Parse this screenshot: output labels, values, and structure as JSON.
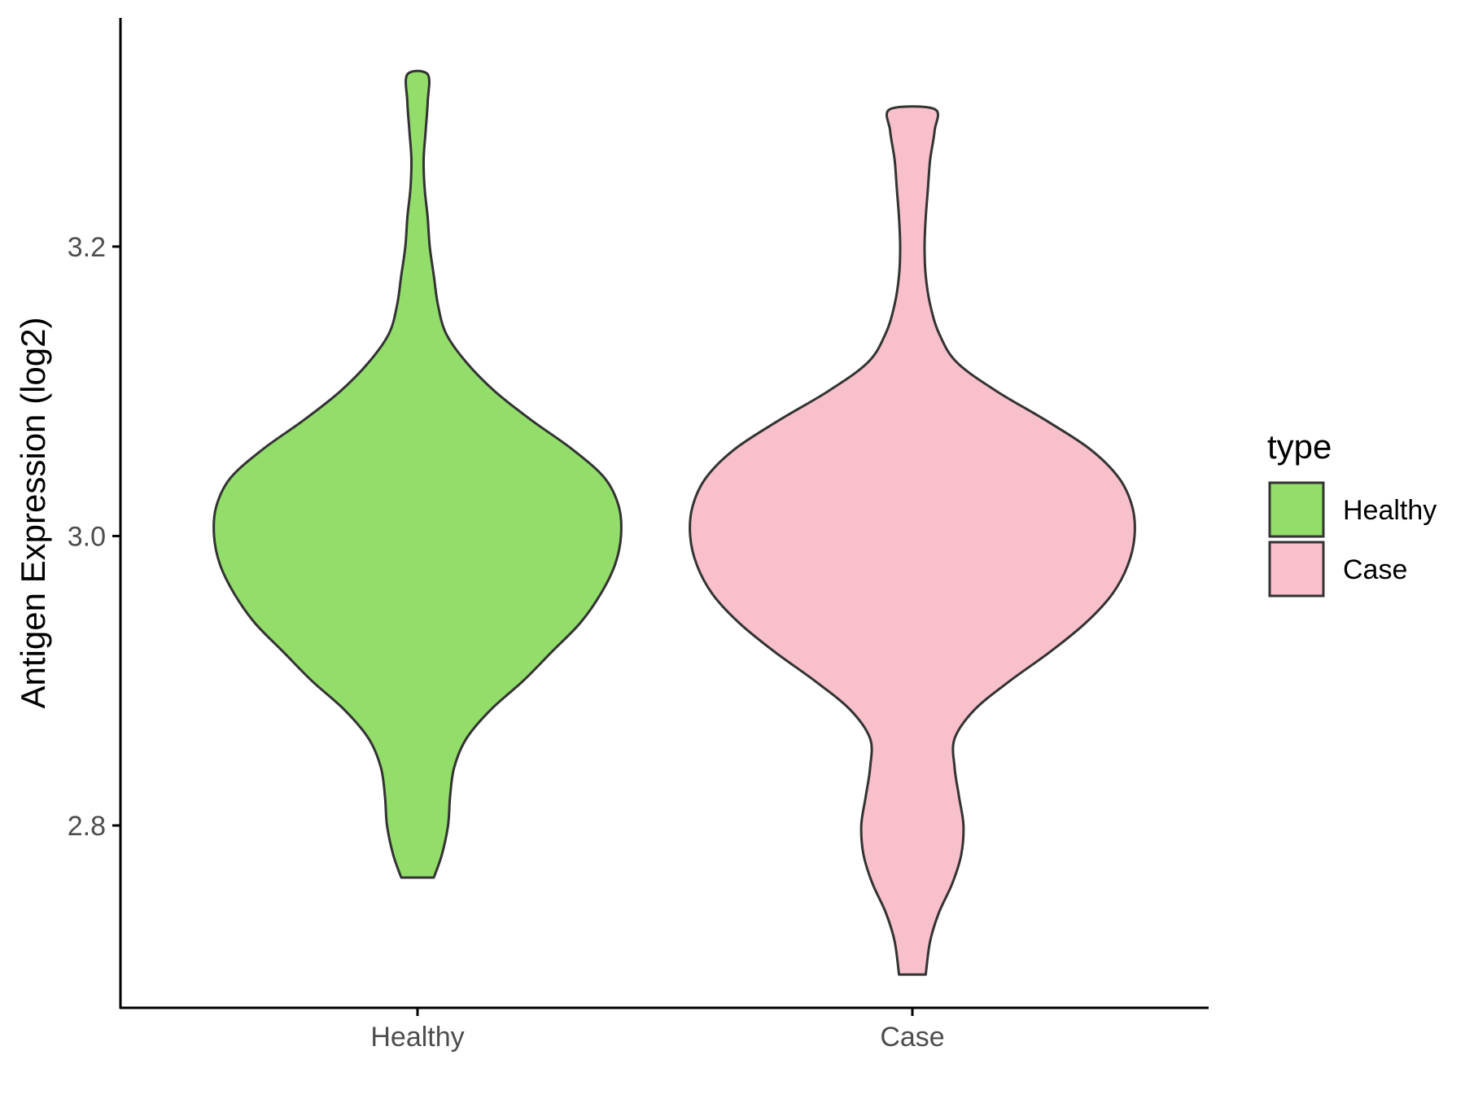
{
  "chart_data": {
    "type": "violin",
    "title": "",
    "xlabel": "",
    "ylabel": "Antigen Expression (log2)",
    "categories": [
      "Healthy",
      "Case"
    ],
    "ylim": [
      2.674,
      3.358
    ],
    "yticks": [
      2.8,
      3.0,
      3.2
    ],
    "ytick_labels": [
      "2.8",
      "3.0",
      "3.2"
    ],
    "grid": false,
    "legend": {
      "title": "type",
      "position": "right",
      "entries": [
        "Healthy",
        "Case"
      ]
    },
    "series": [
      {
        "name": "Healthy",
        "color": "#93DD6A",
        "min": 2.764,
        "max": 3.319,
        "density_profile": [
          [
            2.764,
            0.08
          ],
          [
            2.78,
            0.12
          ],
          [
            2.8,
            0.15
          ],
          [
            2.82,
            0.16
          ],
          [
            2.84,
            0.18
          ],
          [
            2.86,
            0.24
          ],
          [
            2.88,
            0.36
          ],
          [
            2.9,
            0.52
          ],
          [
            2.92,
            0.66
          ],
          [
            2.94,
            0.8
          ],
          [
            2.96,
            0.9
          ],
          [
            2.98,
            0.97
          ],
          [
            3.0,
            1.0
          ],
          [
            3.02,
            0.99
          ],
          [
            3.04,
            0.92
          ],
          [
            3.06,
            0.76
          ],
          [
            3.08,
            0.56
          ],
          [
            3.1,
            0.38
          ],
          [
            3.12,
            0.24
          ],
          [
            3.14,
            0.14
          ],
          [
            3.16,
            0.1
          ],
          [
            3.18,
            0.08
          ],
          [
            3.2,
            0.06
          ],
          [
            3.22,
            0.05
          ],
          [
            3.24,
            0.035
          ],
          [
            3.26,
            0.03
          ],
          [
            3.28,
            0.04
          ],
          [
            3.3,
            0.05
          ],
          [
            3.319,
            0.05
          ]
        ]
      },
      {
        "name": "Case",
        "color": "#F8C0CB",
        "min": 2.697,
        "max": 3.295,
        "density_profile": [
          [
            2.697,
            0.06
          ],
          [
            2.72,
            0.08
          ],
          [
            2.74,
            0.12
          ],
          [
            2.76,
            0.18
          ],
          [
            2.78,
            0.22
          ],
          [
            2.8,
            0.23
          ],
          [
            2.82,
            0.21
          ],
          [
            2.84,
            0.19
          ],
          [
            2.86,
            0.19
          ],
          [
            2.88,
            0.28
          ],
          [
            2.9,
            0.44
          ],
          [
            2.92,
            0.62
          ],
          [
            2.94,
            0.78
          ],
          [
            2.96,
            0.9
          ],
          [
            2.98,
            0.97
          ],
          [
            3.0,
            1.0
          ],
          [
            3.02,
            0.99
          ],
          [
            3.04,
            0.93
          ],
          [
            3.06,
            0.8
          ],
          [
            3.08,
            0.6
          ],
          [
            3.1,
            0.38
          ],
          [
            3.12,
            0.2
          ],
          [
            3.14,
            0.12
          ],
          [
            3.16,
            0.08
          ],
          [
            3.18,
            0.06
          ],
          [
            3.2,
            0.055
          ],
          [
            3.22,
            0.06
          ],
          [
            3.24,
            0.07
          ],
          [
            3.26,
            0.08
          ],
          [
            3.28,
            0.1
          ],
          [
            3.295,
            0.1
          ]
        ]
      }
    ],
    "outline_color": "#333333"
  }
}
